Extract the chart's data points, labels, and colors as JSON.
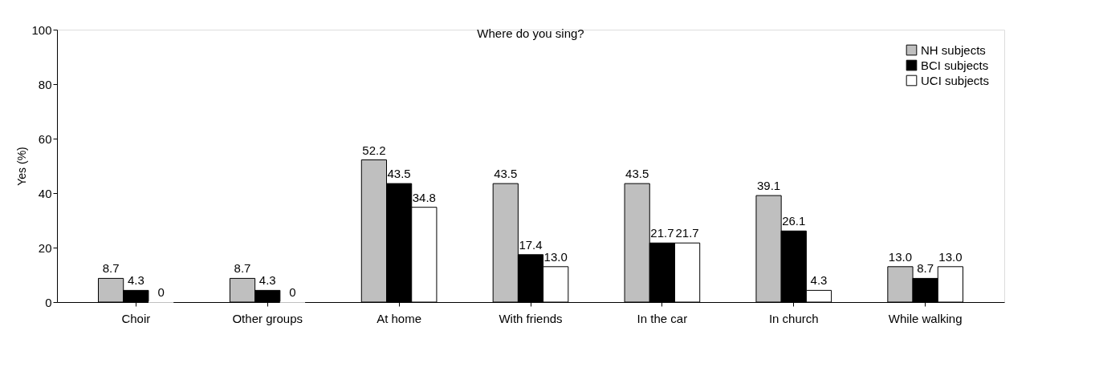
{
  "chart_data": {
    "type": "bar",
    "title": "Where do you sing?",
    "ylabel": "Yes (%)",
    "categories": [
      "Choir",
      "Other groups",
      "At home",
      "With friends",
      "In the car",
      "In church",
      "While walking"
    ],
    "series": [
      {
        "name": "NH subjects",
        "color": "#bfbfbf",
        "values": [
          8.7,
          8.7,
          52.2,
          43.5,
          43.5,
          39.1,
          13.0
        ],
        "value_labels": [
          "8.7",
          "8.7",
          "52.2",
          "43.5",
          "43.5",
          "39.1",
          "13.0"
        ]
      },
      {
        "name": "BCI subjects",
        "color": "#000000",
        "values": [
          4.3,
          4.3,
          43.5,
          17.4,
          21.7,
          26.1,
          8.7
        ],
        "value_labels": [
          "4.3",
          "4.3",
          "43.5",
          "17.4",
          "21.7",
          "26.1",
          "8.7"
        ]
      },
      {
        "name": "UCI subjects",
        "color": "#ffffff",
        "values": [
          0,
          0,
          34.8,
          13.0,
          21.7,
          4.3,
          13.0
        ],
        "value_labels": [
          "0",
          "0",
          "34.8",
          "13.0",
          "21.7",
          "4.3",
          "13.0"
        ]
      }
    ],
    "ylim": [
      0,
      100
    ],
    "yticks": [
      0,
      20,
      40,
      60,
      80,
      100
    ],
    "grid": false,
    "legend": "top right"
  }
}
